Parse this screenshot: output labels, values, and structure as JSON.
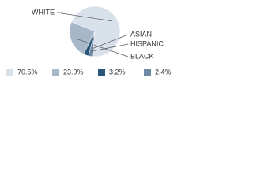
{
  "chart_data": {
    "type": "pie",
    "categories": [
      "WHITE",
      "BLACK",
      "ASIAN",
      "HISPANIC"
    ],
    "values": [
      70.5,
      23.9,
      3.2,
      2.4
    ],
    "value_labels": [
      "70.5%",
      "23.9%",
      "3.2%",
      "2.4%"
    ],
    "colors": [
      "#d8e0ea",
      "#a7b6c9",
      "#2c5677",
      "#6f88a4"
    ]
  }
}
